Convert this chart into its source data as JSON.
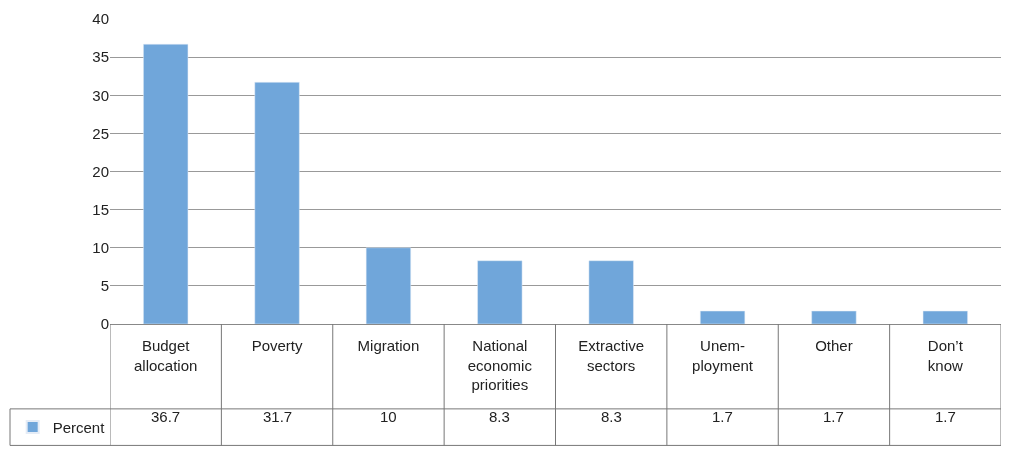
{
  "chart_data": {
    "type": "bar",
    "categories": [
      "Budget\nallocation",
      "Poverty",
      "Migration",
      "National\neconomic\npriorities",
      "Extractive\nsectors",
      "Unem-\nployment",
      "Other",
      "Don’t\nknow"
    ],
    "series": [
      {
        "name": "Percent",
        "color": "#70a6da",
        "values": [
          36.7,
          31.7,
          10,
          8.3,
          8.3,
          1.7,
          1.7,
          1.7
        ]
      }
    ],
    "ylim": [
      0,
      40
    ],
    "yticks": [
      0,
      5,
      10,
      15,
      20,
      25,
      30,
      35,
      40
    ],
    "grid": "y",
    "legend": "bottom left",
    "data_labels": true
  }
}
